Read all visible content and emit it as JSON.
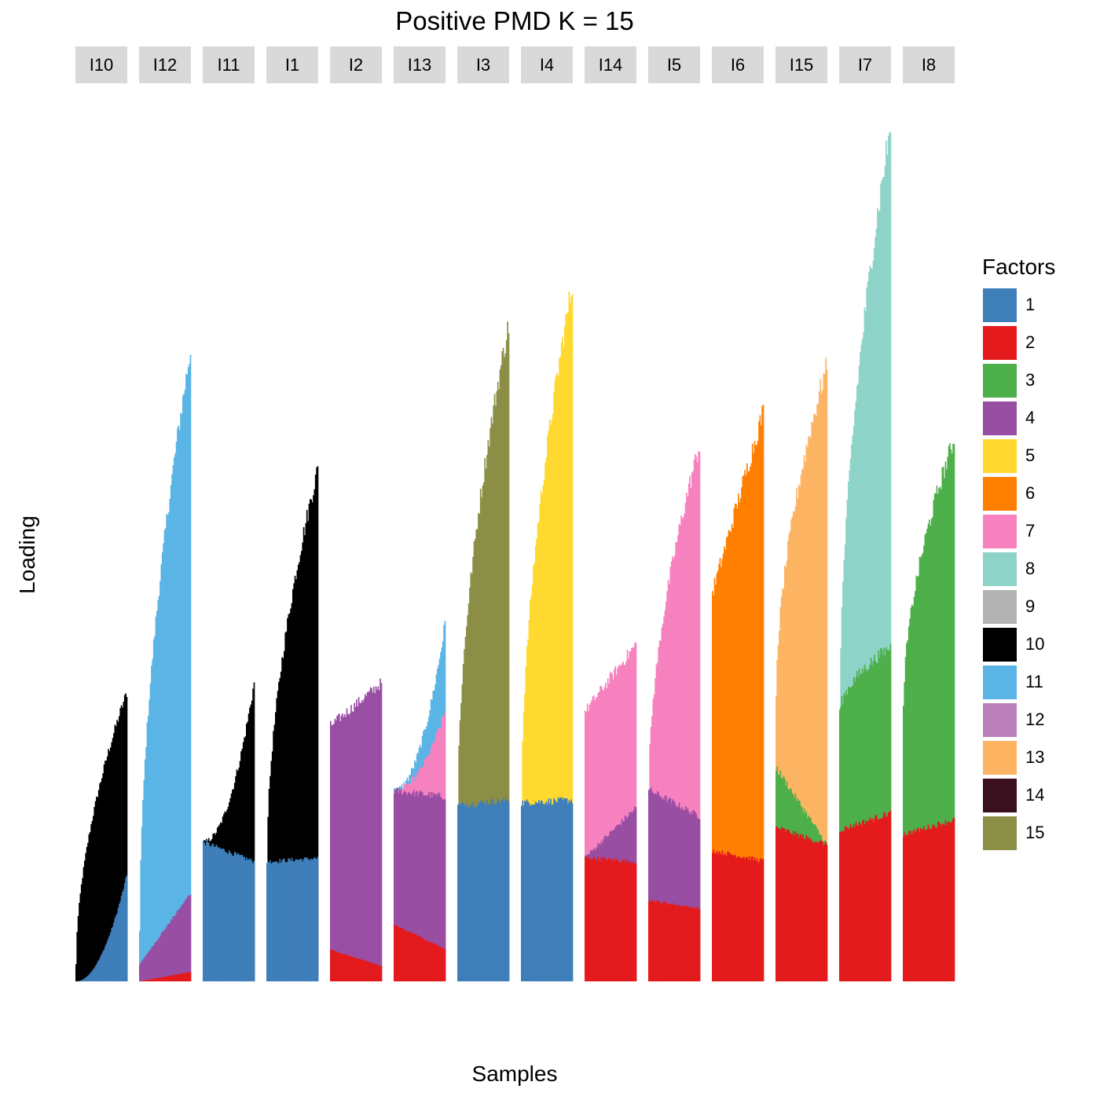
{
  "chart_data": {
    "type": "bar",
    "title": "Positive PMD K = 15",
    "xlabel": "Samples",
    "ylabel": "Loading",
    "stacked": true,
    "facets": [
      "I10",
      "I12",
      "I11",
      "I1",
      "I2",
      "I13",
      "I3",
      "I4",
      "I14",
      "I5",
      "I6",
      "I15",
      "I7",
      "I8"
    ],
    "ylim": [
      0,
      1
    ],
    "legend": {
      "title": "Factors",
      "position": "right",
      "entries": [
        "1",
        "2",
        "3",
        "4",
        "5",
        "6",
        "7",
        "8",
        "9",
        "10",
        "11",
        "12",
        "13",
        "14",
        "15"
      ]
    },
    "factor_colors": {
      "1": "#3E7FBA",
      "2": "#E41A1C",
      "3": "#4DAF4A",
      "4": "#984EA3",
      "5": "#FFD92F",
      "6": "#FF7F00",
      "7": "#F781BF",
      "8": "#8DD3C7",
      "9": "#B3B3B3",
      "10": "#000000",
      "11": "#5AB4E5",
      "12": "#BC80BD",
      "13": "#FDB462",
      "14": "#3A0F1E",
      "15": "#8B8E45"
    },
    "panel_profiles": [
      {
        "facet": "I10",
        "stacks": [
          {
            "factor": "1",
            "start": 0.0,
            "end": 0.124,
            "shape": "convex"
          },
          {
            "factor": "10",
            "start": 0.02,
            "end": 0.338,
            "shape": "concave"
          }
        ]
      },
      {
        "facet": "I12",
        "stacks": [
          {
            "factor": "2",
            "start": 0.0,
            "end": 0.011,
            "shape": "linear"
          },
          {
            "factor": "4",
            "start": 0.02,
            "end": 0.103,
            "shape": "linear"
          },
          {
            "factor": "11",
            "start": 0.06,
            "end": 0.738,
            "shape": "concave"
          }
        ]
      },
      {
        "facet": "I11",
        "stacks": [
          {
            "factor": "1",
            "start": 0.163,
            "end": 0.14,
            "shape": "linear"
          },
          {
            "factor": "10",
            "start": 0.163,
            "end": 0.349,
            "shape": "convex"
          }
        ]
      },
      {
        "facet": "I1",
        "stacks": [
          {
            "factor": "1",
            "start": 0.14,
            "end": 0.144,
            "shape": "linear"
          },
          {
            "factor": "10",
            "start": 0.14,
            "end": 0.599,
            "shape": "concave"
          }
        ]
      },
      {
        "facet": "I2",
        "stacks": [
          {
            "factor": "2",
            "start": 0.037,
            "end": 0.018,
            "shape": "linear"
          },
          {
            "factor": "4",
            "start": 0.299,
            "end": 0.349,
            "shape": "linear"
          }
        ]
      },
      {
        "facet": "I13",
        "stacks": [
          {
            "factor": "2",
            "start": 0.066,
            "end": 0.038,
            "shape": "linear"
          },
          {
            "factor": "4",
            "start": 0.223,
            "end": 0.216,
            "shape": "linear"
          },
          {
            "factor": "7",
            "start": 0.223,
            "end": 0.315,
            "shape": "convex"
          },
          {
            "factor": "11",
            "start": 0.223,
            "end": 0.418,
            "shape": "convex"
          }
        ]
      },
      {
        "facet": "I3",
        "stacks": [
          {
            "factor": "1",
            "start": 0.206,
            "end": 0.212,
            "shape": "linear"
          },
          {
            "factor": "15",
            "start": 0.206,
            "end": 0.768,
            "shape": "concave"
          }
        ]
      },
      {
        "facet": "I4",
        "stacks": [
          {
            "factor": "1",
            "start": 0.209,
            "end": 0.212,
            "shape": "linear"
          },
          {
            "factor": "5",
            "start": 0.209,
            "end": 0.815,
            "shape": "concave"
          }
        ]
      },
      {
        "facet": "I14",
        "stacks": [
          {
            "factor": "2",
            "start": 0.145,
            "end": 0.14,
            "shape": "linear"
          },
          {
            "factor": "4",
            "start": 0.145,
            "end": 0.203,
            "shape": "linear"
          },
          {
            "factor": "7",
            "start": 0.316,
            "end": 0.394,
            "shape": "linear"
          }
        ]
      },
      {
        "facet": "I5",
        "stacks": [
          {
            "factor": "2",
            "start": 0.095,
            "end": 0.085,
            "shape": "linear"
          },
          {
            "factor": "4",
            "start": 0.224,
            "end": 0.193,
            "shape": "linear"
          },
          {
            "factor": "7",
            "start": 0.224,
            "end": 0.627,
            "shape": "concave"
          }
        ]
      },
      {
        "facet": "I6",
        "stacks": [
          {
            "factor": "2",
            "start": 0.153,
            "end": 0.141,
            "shape": "linear"
          },
          {
            "factor": "6",
            "start": 0.455,
            "end": 0.667,
            "shape": "linear"
          }
        ]
      },
      {
        "facet": "I15",
        "stacks": [
          {
            "factor": "2",
            "start": 0.18,
            "end": 0.16,
            "shape": "linear"
          },
          {
            "factor": "3",
            "start": 0.25,
            "end": 0.16,
            "shape": "linear"
          },
          {
            "factor": "13",
            "start": 0.33,
            "end": 0.72,
            "shape": "concave"
          }
        ]
      },
      {
        "facet": "I7",
        "stacks": [
          {
            "factor": "2",
            "start": 0.177,
            "end": 0.197,
            "shape": "linear"
          },
          {
            "factor": "3",
            "start": 0.314,
            "end": 0.391,
            "shape": "concave"
          },
          {
            "factor": "8",
            "start": 0.314,
            "end": 1.0,
            "shape": "concave"
          }
        ]
      },
      {
        "facet": "I8",
        "stacks": [
          {
            "factor": "2",
            "start": 0.172,
            "end": 0.189,
            "shape": "linear"
          },
          {
            "factor": "3",
            "start": 0.319,
            "end": 0.634,
            "shape": "concave"
          }
        ]
      }
    ]
  }
}
